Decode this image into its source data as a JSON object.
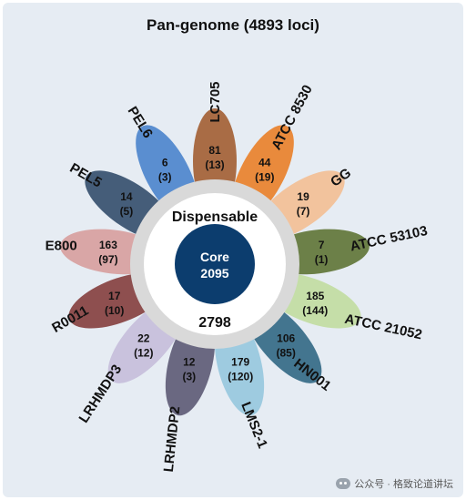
{
  "title": "Pan-genome (4893 loci)",
  "center": {
    "dispensable_label": "Dispensable",
    "dispensable_count": "2798",
    "core_label": "Core",
    "core_count": "2095",
    "outer_color": "#d9d9d9",
    "inner_color": "#ffffff",
    "core_color": "#0c3d6e"
  },
  "petals": [
    {
      "strain": "LC705",
      "count": "81",
      "unique": "(13)",
      "color": "#a96c45"
    },
    {
      "strain": "ATCC 8530",
      "count": "44",
      "unique": "(19)",
      "color": "#e98a3c"
    },
    {
      "strain": "GG",
      "count": "19",
      "unique": "(7)",
      "color": "#f2c39d"
    },
    {
      "strain": "ATCC 53103",
      "count": "7",
      "unique": "(1)",
      "color": "#6c8048"
    },
    {
      "strain": "ATCC 21052",
      "count": "185",
      "unique": "(144)",
      "color": "#c5dea8"
    },
    {
      "strain": "HN001",
      "count": "106",
      "unique": "(85)",
      "color": "#43758f"
    },
    {
      "strain": "LMS2-1",
      "count": "179",
      "unique": "(120)",
      "color": "#9ecbe0"
    },
    {
      "strain": "LRHMDP2",
      "count": "12",
      "unique": "(3)",
      "color": "#6a6881"
    },
    {
      "strain": "LRHMDP3",
      "count": "22",
      "unique": "(12)",
      "color": "#c9c2dd"
    },
    {
      "strain": "R0011",
      "count": "17",
      "unique": "(10)",
      "color": "#8e4f4f"
    },
    {
      "strain": "E800",
      "count": "163",
      "unique": "(97)",
      "color": "#d9a6a6"
    },
    {
      "strain": "PEL5",
      "count": "14",
      "unique": "(5)",
      "color": "#455d79"
    },
    {
      "strain": "PEL6",
      "count": "6",
      "unique": "(3)",
      "color": "#5a8ed0"
    }
  ],
  "watermark": "公众号 · 格致论道讲坛"
}
